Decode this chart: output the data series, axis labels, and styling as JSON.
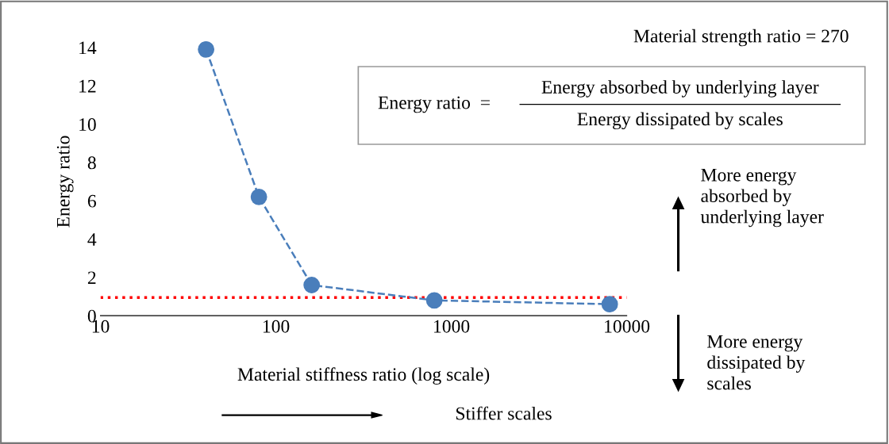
{
  "chart_data": {
    "type": "line",
    "xlabel": "Material stiffness ratio (log scale)",
    "ylabel": "Energy ratio",
    "log": "x",
    "x": [
      40,
      80,
      160,
      800,
      8000
    ],
    "series": [
      {
        "color": "#4a7ebb",
        "values": [
          13.9,
          6.2,
          1.6,
          0.8,
          0.6
        ],
        "marker": "circle",
        "line_style": "dashed"
      }
    ],
    "xlim": [
      10,
      10000
    ],
    "xticks": [
      10,
      100,
      1000,
      10000
    ],
    "ylim": [
      0,
      14
    ],
    "yticks": [
      0,
      2,
      4,
      6,
      8,
      10,
      12,
      14
    ],
    "grid": false,
    "legend": false,
    "ref_lines": [
      {
        "axis": "y",
        "value": 0.95,
        "color": "#ff0000",
        "line_style": "dotted"
      }
    ],
    "annotations": [
      "Material strength ratio = 270",
      "Energy ratio  =",
      "Energy absorbed by underlying layer",
      "Energy dissipated by scales",
      "More energy\nabsorbed by\nunderlying layer",
      "More energy\ndissipated by\nscales",
      "Stiffer scales"
    ]
  }
}
